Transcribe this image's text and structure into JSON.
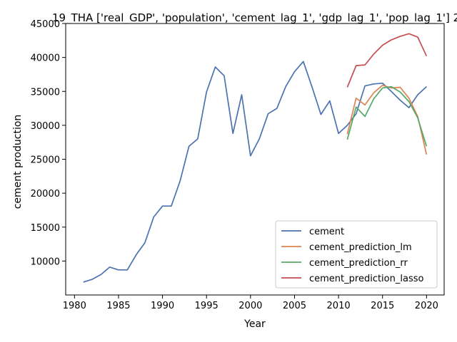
{
  "chart_data": {
    "type": "line",
    "title": "19_THA ['real_GDP', 'population', 'cement_lag_1', 'gdp_lag_1', 'pop_lag_1'] 2",
    "xlabel": "Year",
    "ylabel": "cement production",
    "xlim": [
      1979,
      2022
    ],
    "ylim": [
      5000,
      45000
    ],
    "xticks": [
      1980,
      1985,
      1990,
      1995,
      2000,
      2005,
      2010,
      2015,
      2020
    ],
    "yticks": [
      10000,
      15000,
      20000,
      25000,
      30000,
      35000,
      40000,
      45000
    ],
    "grid": false,
    "legend_position": "lower-right",
    "series": [
      {
        "name": "cement",
        "color": "#4c72b0",
        "x": [
          1981,
          1982,
          1983,
          1984,
          1985,
          1986,
          1987,
          1988,
          1989,
          1990,
          1991,
          1992,
          1993,
          1994,
          1995,
          1996,
          1997,
          1998,
          1999,
          2000,
          2001,
          2002,
          2003,
          2004,
          2005,
          2006,
          2007,
          2008,
          2009,
          2010,
          2011,
          2012,
          2013,
          2014,
          2015,
          2016,
          2017,
          2018,
          2019,
          2020
        ],
        "values": [
          6900,
          7300,
          8000,
          9100,
          8700,
          8700,
          10900,
          12700,
          16500,
          18100,
          18100,
          21800,
          26900,
          28000,
          34900,
          38600,
          37300,
          28800,
          34500,
          25500,
          28000,
          31700,
          32500,
          35700,
          37900,
          39400,
          35600,
          31600,
          33600,
          28800,
          30000,
          31700,
          35800,
          36100,
          36200,
          35000,
          33700,
          32600,
          34500,
          35700
        ]
      },
      {
        "name": "cement_prediction_lm",
        "color": "#dd8452",
        "x": [
          2011,
          2012,
          2013,
          2014,
          2015,
          2016,
          2017,
          2018,
          2019,
          2020
        ],
        "values": [
          28700,
          34000,
          33000,
          34800,
          35900,
          35500,
          35600,
          34000,
          31300,
          25700
        ]
      },
      {
        "name": "cement_prediction_rr",
        "color": "#55a868",
        "x": [
          2011,
          2012,
          2013,
          2014,
          2015,
          2016,
          2017,
          2018,
          2019,
          2020
        ],
        "values": [
          27900,
          32700,
          31300,
          33900,
          35500,
          35700,
          34900,
          33500,
          31100,
          26900
        ]
      },
      {
        "name": "cement_prediction_lasso",
        "color": "#c44e52",
        "x": [
          2011,
          2012,
          2013,
          2014,
          2015,
          2016,
          2017,
          2018,
          2019,
          2020
        ],
        "values": [
          35600,
          38800,
          38900,
          40500,
          41800,
          42600,
          43100,
          43500,
          43000,
          40200
        ]
      }
    ]
  }
}
